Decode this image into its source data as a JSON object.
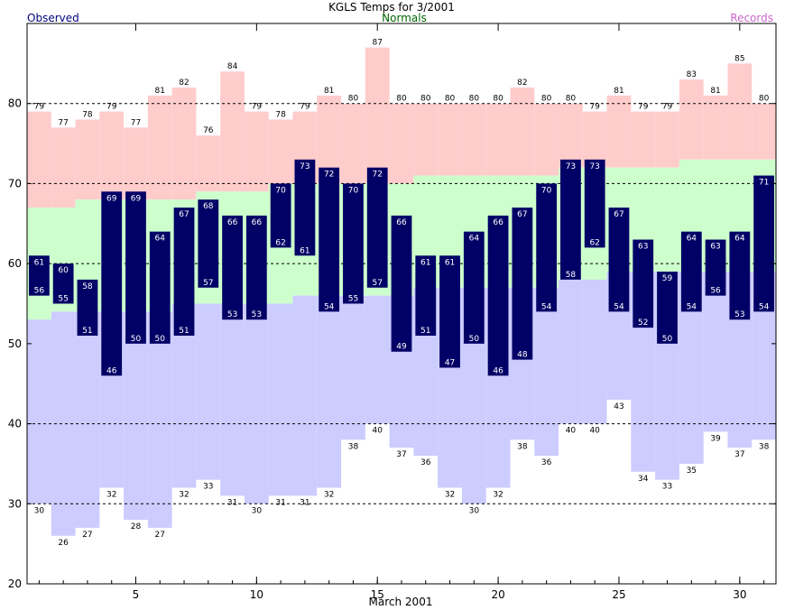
{
  "chart_data": {
    "type": "bar",
    "title": "KGLS Temps for 3/2001",
    "legend": {
      "observed": "Observed",
      "normals": "Normals",
      "records": "Records"
    },
    "xlabel": "March 2001",
    "ylabel": "",
    "ylim": [
      20,
      90
    ],
    "xlim": [
      0.5,
      31.5
    ],
    "y_ticks": [
      20,
      30,
      40,
      50,
      60,
      70,
      80
    ],
    "x_ticks": [
      5,
      10,
      15,
      20,
      25,
      30
    ],
    "grid": "dashed horizontal at 30, 40, 60, 70, 80",
    "colors": {
      "observed": "#000066",
      "normal": "#ccffcc",
      "record_high": "#ffcccc",
      "record_low": "#ccccff",
      "observed_legend": "#000080",
      "normals_legend": "#006600",
      "records_legend": "#cc66cc"
    },
    "days": [
      1,
      2,
      3,
      4,
      5,
      6,
      7,
      8,
      9,
      10,
      11,
      12,
      13,
      14,
      15,
      16,
      17,
      18,
      19,
      20,
      21,
      22,
      23,
      24,
      25,
      26,
      27,
      28,
      29,
      30,
      31
    ],
    "observed_high": [
      61,
      60,
      58,
      69,
      69,
      64,
      67,
      68,
      66,
      66,
      70,
      73,
      72,
      70,
      72,
      66,
      61,
      61,
      64,
      66,
      67,
      70,
      73,
      73,
      67,
      63,
      59,
      64,
      63,
      64,
      71
    ],
    "observed_low": [
      56,
      55,
      51,
      46,
      50,
      50,
      51,
      57,
      53,
      53,
      62,
      61,
      54,
      55,
      57,
      49,
      51,
      47,
      50,
      46,
      48,
      54,
      58,
      62,
      54,
      52,
      50,
      54,
      56,
      53,
      54
    ],
    "record_high": [
      79,
      77,
      78,
      79,
      77,
      81,
      82,
      76,
      84,
      79,
      78,
      79,
      81,
      80,
      87,
      80,
      80,
      80,
      80,
      80,
      82,
      80,
      80,
      79,
      81,
      79,
      79,
      83,
      81,
      85,
      80
    ],
    "record_low": [
      30,
      26,
      27,
      32,
      28,
      27,
      32,
      33,
      31,
      30,
      31,
      31,
      32,
      38,
      40,
      37,
      36,
      32,
      30,
      32,
      38,
      36,
      40,
      40,
      43,
      34,
      33,
      35,
      39,
      37,
      38
    ],
    "normal_high": [
      67,
      67,
      68,
      68,
      68,
      68,
      68,
      69,
      69,
      69,
      70,
      70,
      70,
      70,
      70,
      70,
      71,
      71,
      71,
      71,
      71,
      71,
      72,
      72,
      72,
      72,
      72,
      73,
      73,
      73,
      73
    ],
    "normal_low": [
      53,
      54,
      54,
      54,
      54,
      54,
      55,
      55,
      55,
      55,
      55,
      56,
      56,
      56,
      56,
      56,
      57,
      57,
      57,
      57,
      57,
      57,
      58,
      58,
      59,
      59,
      59,
      59,
      59,
      59,
      59
    ]
  }
}
